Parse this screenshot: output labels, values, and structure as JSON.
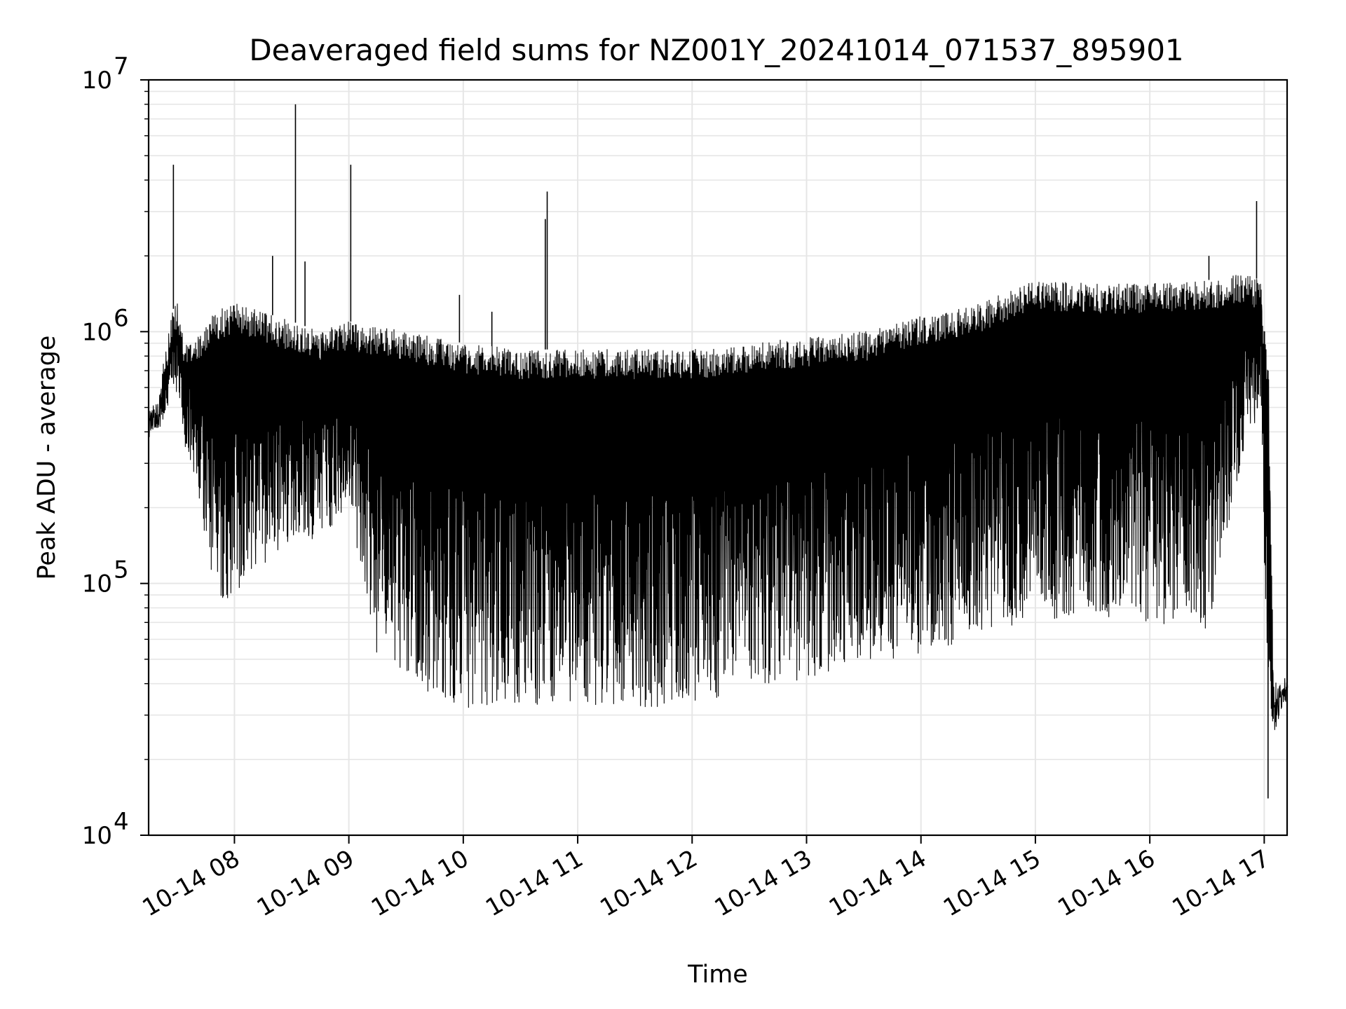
{
  "chart_data": {
    "type": "line",
    "title": "Deaveraged field sums for NZ001Y_20241014_071537_895901",
    "xlabel": "Time",
    "ylabel": "Peak ADU - average",
    "yscale": "log",
    "xlim": [
      "10-14 07:15",
      "10-14 17:12"
    ],
    "ylim": [
      10000,
      10000000
    ],
    "grid": true,
    "line_color": "#000000",
    "x_ticks": [
      {
        "value": "10-14 08:00",
        "label": "10-14 08"
      },
      {
        "value": "10-14 09:00",
        "label": "10-14 09"
      },
      {
        "value": "10-14 10:00",
        "label": "10-14 10"
      },
      {
        "value": "10-14 11:00",
        "label": "10-14 11"
      },
      {
        "value": "10-14 12:00",
        "label": "10-14 12"
      },
      {
        "value": "10-14 13:00",
        "label": "10-14 13"
      },
      {
        "value": "10-14 14:00",
        "label": "10-14 14"
      },
      {
        "value": "10-14 15:00",
        "label": "10-14 15"
      },
      {
        "value": "10-14 16:00",
        "label": "10-14 16"
      },
      {
        "value": "10-14 17:00",
        "label": "10-14 17"
      }
    ],
    "y_ticks": [
      {
        "value": 10000,
        "base": "10",
        "exp": "4"
      },
      {
        "value": 100000,
        "base": "10",
        "exp": "5"
      },
      {
        "value": 1000000,
        "base": "10",
        "exp": "6"
      },
      {
        "value": 10000000,
        "base": "10",
        "exp": "7"
      }
    ],
    "series": [
      {
        "upper_envelope": {
          "x": [
            "10-14 07:15",
            "10-14 07:20",
            "10-14 07:27",
            "10-14 07:30",
            "10-14 07:34",
            "10-14 07:40",
            "10-14 07:50",
            "10-14 08:00",
            "10-14 08:30",
            "10-14 08:45",
            "10-14 09:00",
            "10-14 09:30",
            "10-14 10:00",
            "10-14 10:30",
            "10-14 11:00",
            "10-14 11:30",
            "10-14 12:00",
            "10-14 12:30",
            "10-14 13:00",
            "10-14 13:30",
            "10-14 14:00",
            "10-14 14:30",
            "10-14 15:00",
            "10-14 15:30",
            "10-14 16:00",
            "10-14 16:30",
            "10-14 16:50",
            "10-14 16:58",
            "10-14 17:02",
            "10-14 17:05",
            "10-14 17:12"
          ],
          "y": [
            500000,
            550000,
            1200000,
            1300000,
            900000,
            1000000,
            1200000,
            1300000,
            1100000,
            1000000,
            1100000,
            1000000,
            900000,
            850000,
            850000,
            850000,
            850000,
            900000,
            950000,
            1000000,
            1150000,
            1300000,
            1600000,
            1550000,
            1550000,
            1600000,
            1700000,
            1600000,
            700000,
            40000,
            43000
          ]
        },
        "lower_envelope": {
          "x": [
            "10-14 07:15",
            "10-14 07:20",
            "10-14 07:27",
            "10-14 07:30",
            "10-14 07:34",
            "10-14 07:40",
            "10-14 07:50",
            "10-14 08:00",
            "10-14 08:30",
            "10-14 08:45",
            "10-14 09:00",
            "10-14 09:15",
            "10-14 09:30",
            "10-14 10:00",
            "10-14 10:30",
            "10-14 11:00",
            "10-14 11:30",
            "10-14 12:00",
            "10-14 12:30",
            "10-14 13:00",
            "10-14 13:30",
            "10-14 14:00",
            "10-14 14:30",
            "10-14 15:00",
            "10-14 15:30",
            "10-14 16:00",
            "10-14 16:30",
            "10-14 16:50",
            "10-14 16:58",
            "10-14 17:02",
            "10-14 17:05",
            "10-14 17:12"
          ],
          "y": [
            420000,
            400000,
            500000,
            600000,
            350000,
            250000,
            80000,
            90000,
            150000,
            150000,
            200000,
            50000,
            40000,
            32000,
            33000,
            33000,
            32000,
            33000,
            38000,
            42000,
            48000,
            52000,
            62000,
            70000,
            75000,
            70000,
            65000,
            350000,
            500000,
            20000,
            25000,
            38000
          ]
        },
        "spikes": [
          {
            "x": "10-14 07:28",
            "y": 4600000
          },
          {
            "x": "10-14 08:32",
            "y": 8000000
          },
          {
            "x": "10-14 09:01",
            "y": 4600000
          },
          {
            "x": "10-14 08:20",
            "y": 2000000
          },
          {
            "x": "10-14 08:37",
            "y": 1900000
          },
          {
            "x": "10-14 09:58",
            "y": 1400000
          },
          {
            "x": "10-14 10:15",
            "y": 1200000
          },
          {
            "x": "10-14 10:44",
            "y": 3600000
          },
          {
            "x": "10-14 10:43",
            "y": 2800000
          },
          {
            "x": "10-14 16:31",
            "y": 2000000
          },
          {
            "x": "10-14 16:56",
            "y": 3300000
          },
          {
            "x": "10-14 17:02",
            "y": 14000
          }
        ]
      }
    ]
  }
}
